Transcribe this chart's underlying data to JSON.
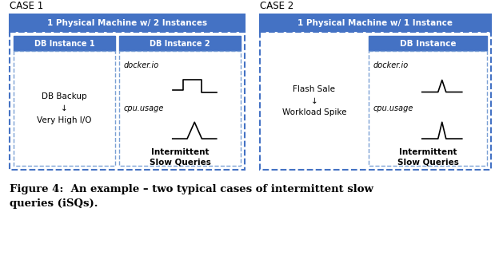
{
  "bg_color": "#ffffff",
  "case1_label": "CASE 1",
  "case2_label": "CASE 2",
  "case1_title": "1 Physical Machine w/ 2 Instances",
  "case2_title": "1 Physical Machine w/ 1 Instance",
  "db_instance1": "DB Instance 1",
  "db_instance2": "DB Instance 2",
  "db_instance3": "DB Instance",
  "db_backup_text": "DB Backup\n↓\nVery High I/O",
  "flash_sale_text": "Flash Sale\n↓\nWorkload Spike",
  "docker_io": "docker.io",
  "cpu_usage": "cpu.usage",
  "isq_label": "Intermittent\nSlow Queries",
  "fig_caption": "Figure 4:  An example – two typical cases of intermittent slow\nqueries (iSQs).",
  "header_bg": "#4472c4",
  "header_text": "#ffffff",
  "outer_box_border": "#4472c4",
  "inner_dashed_border": "#7a9fd4",
  "font_size_case": 8.5,
  "font_size_header": 7.5,
  "font_size_inst_header": 7,
  "font_size_body": 7,
  "font_size_caption": 9.5
}
